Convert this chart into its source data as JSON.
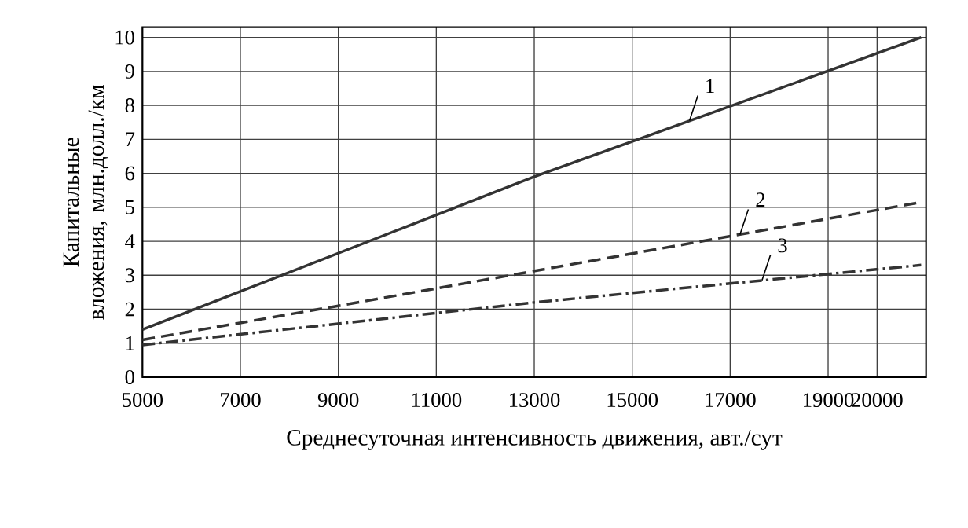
{
  "chart_data": {
    "type": "line",
    "xlabel": "Среднесуточная интенсивность движения, авт./сут",
    "ylabel": "Капитальные вложения, млн.долл./км",
    "xlim": [
      5000,
      21000
    ],
    "xticks": [
      5000,
      7000,
      9000,
      11000,
      13000,
      15000,
      17000,
      19000,
      20000
    ],
    "ylim": [
      0,
      10.3
    ],
    "yticks": [
      0,
      1,
      2,
      3,
      4,
      5,
      6,
      7,
      8,
      9,
      10
    ],
    "grid": true,
    "series": [
      {
        "x": [
          5000,
          13000,
          20900
        ],
        "values": [
          1.4,
          5.9,
          10.0
        ],
        "color": "#333333",
        "line_style": "solid"
      },
      {
        "x": [
          5000,
          9000,
          20900
        ],
        "values": [
          1.1,
          2.1,
          5.15
        ],
        "color": "#333333",
        "line_style": "dashed"
      },
      {
        "x": [
          5000,
          13000,
          20900
        ],
        "values": [
          0.95,
          2.2,
          3.3
        ],
        "color": "#333333",
        "line_style": "dashdot"
      }
    ],
    "annotations": [
      {
        "text": "1",
        "x": 16170,
        "y": 7.55
      },
      {
        "text": "2",
        "x": 17200,
        "y": 4.2
      },
      {
        "text": "3",
        "x": 17650,
        "y": 2.85
      }
    ]
  }
}
